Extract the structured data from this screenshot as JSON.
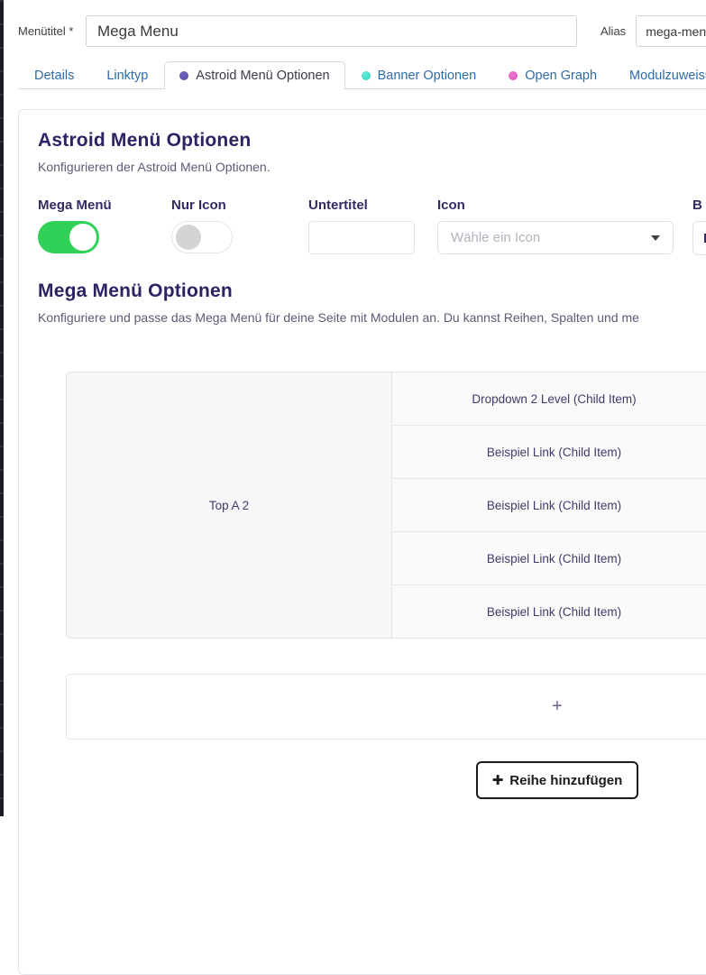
{
  "header": {
    "menu_title_label": "Menütitel *",
    "menu_title_value": "Mega Menu",
    "alias_label": "Alias",
    "alias_value": "mega-menu"
  },
  "tabs": {
    "items": [
      {
        "label": "Details"
      },
      {
        "label": "Linktyp"
      },
      {
        "label": "Astroid Menü Optionen",
        "active": true,
        "dot": "purple"
      },
      {
        "label": "Banner Optionen",
        "dot": "teal"
      },
      {
        "label": "Open Graph",
        "dot": "magenta"
      },
      {
        "label": "Modulzuweisung"
      }
    ]
  },
  "panel": {
    "astroid_section": {
      "title": "Astroid Menü Optionen",
      "description": "Konfigurieren der Astroid Menü Optionen."
    },
    "fields": {
      "mega_menu": {
        "label": "Mega Menü",
        "state": "on"
      },
      "icon_only": {
        "label": "Nur Icon",
        "state": "off"
      },
      "subtitle": {
        "label": "Untertitel",
        "value": ""
      },
      "icon": {
        "label": "Icon",
        "placeholder": "Wähle ein Icon"
      },
      "badge": {
        "label": "B",
        "value": "K"
      }
    },
    "megamenu_section": {
      "title": "Mega Menü Optionen",
      "description": "Konfiguriere und passe das Mega Menü für deine Seite mit Modulen an. Du kannst Reihen, Spalten und me"
    },
    "builder": {
      "parent_cell": "Top A 2",
      "child_items": [
        "Dropdown 2 Level (Child Item)",
        "Beispiel Link (Child Item)",
        "Beispiel Link (Child Item)",
        "Beispiel Link (Child Item)",
        "Beispiel Link (Child Item)"
      ],
      "add_column_label": "+",
      "add_row_icon": "✚",
      "add_row_label": "Reihe hinzufügen"
    }
  },
  "colors": {
    "toggle_on": "#31d158",
    "dot_astroid": "#56509f",
    "dot_banner": "#2ed9c3",
    "dot_opengraph": "#df4fbe",
    "tab_link": "#2e6ca8",
    "heading_text": "#2c2363"
  }
}
